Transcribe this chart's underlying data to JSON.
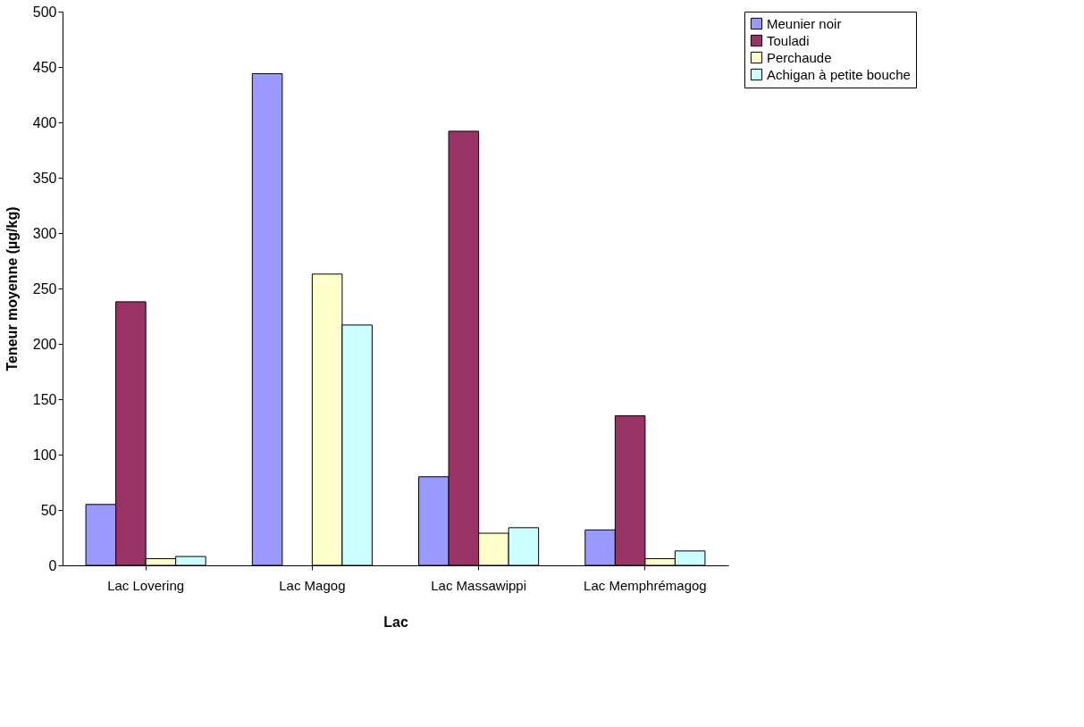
{
  "chart_data": {
    "type": "bar",
    "xlabel": "Lac",
    "ylabel": "Teneur moyenne (µg/kg)",
    "categories": [
      "Lac Lovering",
      "Lac Magog",
      "Lac Massawippi",
      "Lac Memphrémagog"
    ],
    "series": [
      {
        "name": "Meunier noir",
        "color": "#9999ff",
        "values": [
          55,
          444,
          80,
          32
        ]
      },
      {
        "name": "Touladi",
        "color": "#993366",
        "values": [
          238,
          null,
          392,
          135
        ]
      },
      {
        "name": "Perchaude",
        "color": "#ffffcc",
        "values": [
          6,
          263,
          29,
          6
        ]
      },
      {
        "name": "Achigan à petite bouche",
        "color": "#ccffff",
        "values": [
          8,
          217,
          34,
          13
        ]
      }
    ],
    "ylim": [
      0,
      500
    ],
    "yticks": [
      0,
      50,
      100,
      150,
      200,
      250,
      300,
      350,
      400,
      450,
      500
    ],
    "grid": false,
    "legend": "right"
  }
}
